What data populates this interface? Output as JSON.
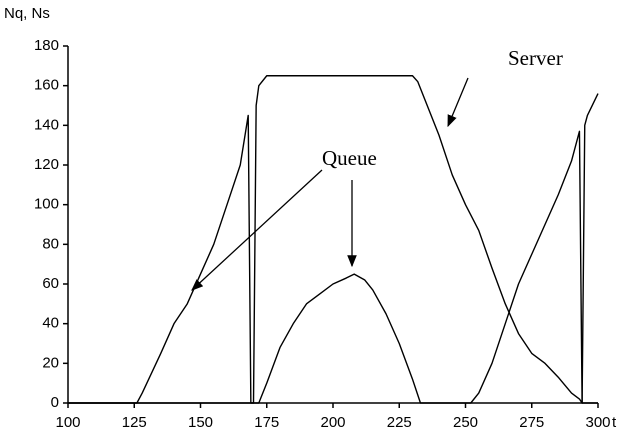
{
  "chart_data": {
    "type": "line",
    "y_label": "Nq, Ns",
    "x_label": "t",
    "annotations": [
      "Server",
      "Queue"
    ],
    "series": [
      {
        "name": "Queue",
        "color": "#000000",
        "x": [
          100,
          126,
          128,
          135,
          140,
          145,
          150,
          155,
          160,
          165,
          168,
          169,
          172,
          175,
          180,
          185,
          190,
          195,
          200,
          205,
          208,
          212,
          215,
          220,
          225,
          230,
          233,
          252,
          255,
          260,
          265,
          270,
          275,
          280,
          285,
          290,
          293,
          294,
          300
        ],
        "values": [
          0,
          0,
          5,
          25,
          40,
          50,
          65,
          80,
          100,
          120,
          145,
          0,
          0,
          10,
          28,
          40,
          50,
          55,
          60,
          63,
          65,
          62,
          57,
          45,
          30,
          12,
          0,
          0,
          5,
          20,
          40,
          60,
          75,
          90,
          105,
          122,
          137,
          0,
          0
        ]
      },
      {
        "name": "Server",
        "color": "#000000",
        "x": [
          100,
          170,
          171,
          172,
          175,
          230,
          232,
          240,
          245,
          250,
          255,
          260,
          265,
          270,
          275,
          280,
          285,
          290,
          293,
          294,
          295,
          296,
          300
        ],
        "values": [
          0,
          0,
          150,
          160,
          165,
          165,
          162,
          135,
          115,
          100,
          87,
          68,
          50,
          35,
          25,
          20,
          13,
          5,
          2,
          0,
          140,
          145,
          156
        ]
      }
    ],
    "xlim": [
      100,
      300
    ],
    "xticks": [
      100,
      125,
      150,
      175,
      200,
      225,
      250,
      275,
      300
    ],
    "ylim": [
      0,
      180
    ],
    "yticks": [
      0,
      20,
      40,
      60,
      80,
      100,
      120,
      140,
      160,
      180
    ]
  }
}
